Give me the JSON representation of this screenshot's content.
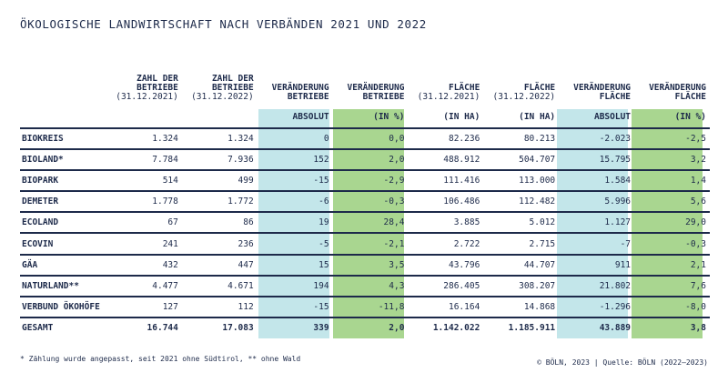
{
  "chart_data": {
    "type": "table",
    "title": "ÖKOLOGISCHE LANDWIRTSCHAFT NACH VERBÄNDEN 2021 UND 2022",
    "columns": [
      {
        "head": "ZAHL DER BETRIEBE",
        "sub": "(31.12.2021)",
        "unit": ""
      },
      {
        "head": "ZAHL DER BETRIEBE",
        "sub": "(31.12.2022)",
        "unit": ""
      },
      {
        "head": "VERÄNDERUNG BETRIEBE",
        "sub": "",
        "unit": "ABSOLUT"
      },
      {
        "head": "VERÄNDERUNG BETRIEBE",
        "sub": "",
        "unit": "(IN %)"
      },
      {
        "head": "FLÄCHE",
        "sub": "(31.12.2021)",
        "unit": "(IN HA)"
      },
      {
        "head": "FLÄCHE",
        "sub": "(31.12.2022)",
        "unit": "(IN HA)"
      },
      {
        "head": "VERÄNDERUNG FLÄCHE",
        "sub": "",
        "unit": "ABSOLUT"
      },
      {
        "head": "VERÄNDERUNG FLÄCHE",
        "sub": "",
        "unit": "(IN %)"
      }
    ],
    "rows": [
      {
        "label": "BIOKREIS",
        "values": [
          "1.324",
          "1.324",
          "0",
          "0,0",
          "82.236",
          "80.213",
          "-2.023",
          "-2,5"
        ]
      },
      {
        "label": "BIOLAND*",
        "values": [
          "7.784",
          "7.936",
          "152",
          "2,0",
          "488.912",
          "504.707",
          "15.795",
          "3,2"
        ]
      },
      {
        "label": "BIOPARK",
        "values": [
          "514",
          "499",
          "-15",
          "-2,9",
          "111.416",
          "113.000",
          "1.584",
          "1,4"
        ]
      },
      {
        "label": "DEMETER",
        "values": [
          "1.778",
          "1.772",
          "-6",
          "-0,3",
          "106.486",
          "112.482",
          "5.996",
          "5,6"
        ]
      },
      {
        "label": "ECOLAND",
        "values": [
          "67",
          "86",
          "19",
          "28,4",
          "3.885",
          "5.012",
          "1.127",
          "29,0"
        ]
      },
      {
        "label": "ECOVIN",
        "values": [
          "241",
          "236",
          "-5",
          "-2,1",
          "2.722",
          "2.715",
          "-7",
          "-0,3"
        ]
      },
      {
        "label": "GÄA",
        "values": [
          "432",
          "447",
          "15",
          "3,5",
          "43.796",
          "44.707",
          "911",
          "2,1"
        ]
      },
      {
        "label": "NATURLAND**",
        "values": [
          "4.477",
          "4.671",
          "194",
          "4,3",
          "286.405",
          "308.207",
          "21.802",
          "7,6"
        ]
      },
      {
        "label": "VERBUND ÖKOHÖFE",
        "values": [
          "127",
          "112",
          "-15",
          "-11,8",
          "16.164",
          "14.868",
          "-1.296",
          "-8,0"
        ]
      },
      {
        "label": "GESAMT",
        "values": [
          "16.744",
          "17.083",
          "339",
          "2,0",
          "1.142.022",
          "1.185.911",
          "43.889",
          "3,8"
        ]
      }
    ],
    "column_colors": [
      "",
      "",
      "#c3e6ea",
      "#a9d690",
      "",
      "",
      "#c3e6ea",
      "#a9d690"
    ]
  },
  "footnote": "* Zählung wurde angepasst, seit 2021 ohne Südtirol, ** ohne Wald",
  "source": "© BÖLN, 2023 | Quelle: BÖLN (2022–2023)"
}
